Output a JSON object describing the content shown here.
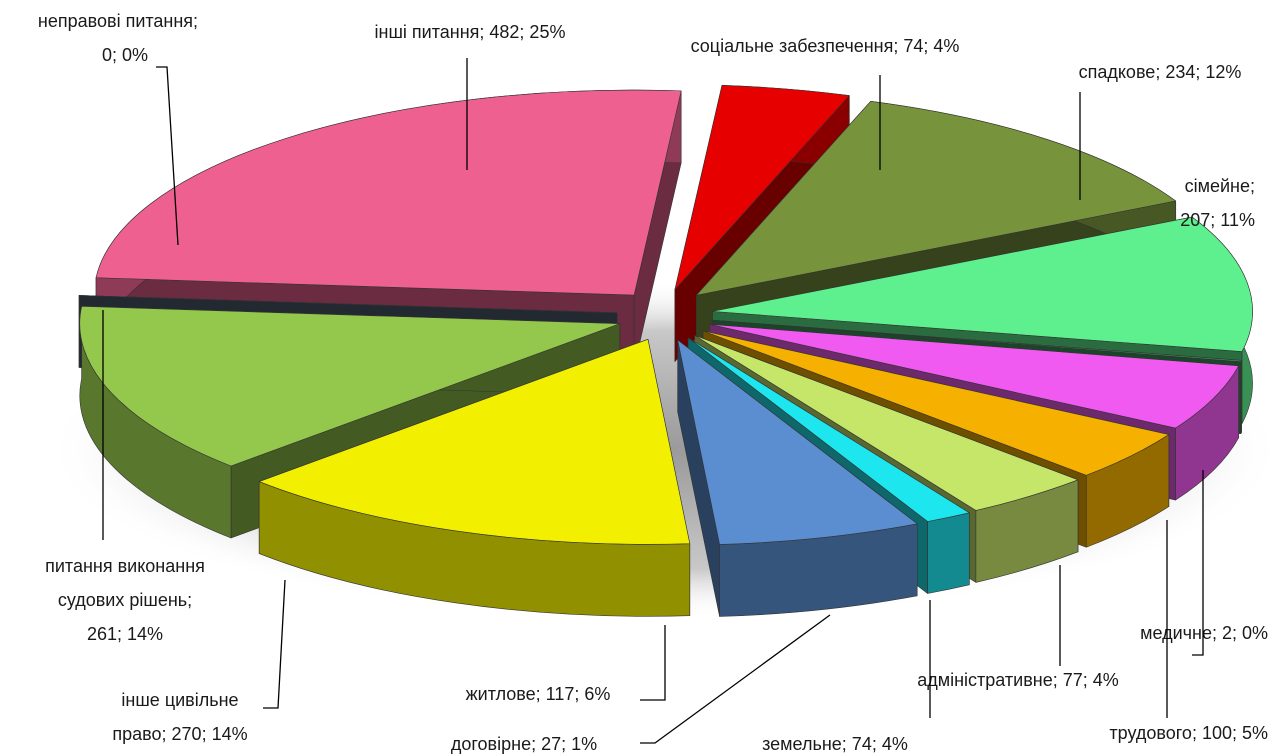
{
  "chart_data": {
    "type": "pie",
    "labels": [
      [
        "соціальне забезпечення; 74; 4%"
      ],
      [
        "спадкове; 234; 12%"
      ],
      [
        "сімейне;",
        "207; 11%"
      ],
      [
        "медичне; 2; 0%"
      ],
      [
        "трудового; 100; 5%"
      ],
      [
        "адміністративне; 77; 4%"
      ],
      [
        "земельне; 74; 4%"
      ],
      [
        "договірне; 27; 1%"
      ],
      [
        "житлове; 117; 6%"
      ],
      [
        "інше цивільне",
        "право; 270; 14%"
      ],
      [
        "питання виконання",
        "судових рішень;",
        "261; 14%"
      ],
      [
        "неправові питання;",
        "0; 0%"
      ],
      [
        "інші питання; 482; 25%"
      ]
    ],
    "values": [
      74,
      234,
      207,
      2,
      100,
      77,
      74,
      27,
      117,
      270,
      261,
      0,
      482
    ],
    "colors": [
      "#e60000",
      "#77933c",
      "#5ef08e",
      "#3d9a5c",
      "#f05af0",
      "#f5b000",
      "#c6e66a",
      "#1ee6ee",
      "#5a8ed0",
      "#f2f000",
      "#94c84c",
      "#4e5c6c",
      "#ee6090"
    ]
  }
}
